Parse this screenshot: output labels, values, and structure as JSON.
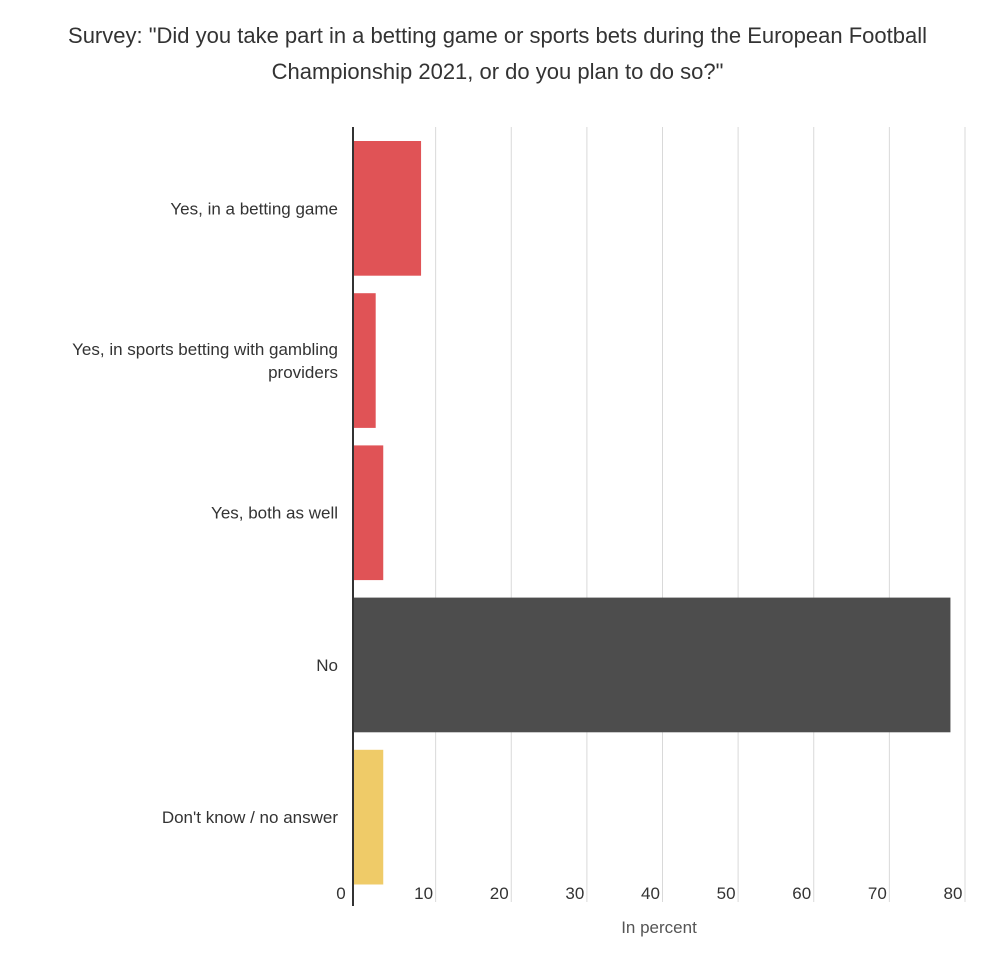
{
  "chart_data": {
    "type": "bar",
    "orientation": "horizontal",
    "title": "Survey: \"Did you take part in a betting game or sports bets during the European Football Championship 2021, or do you plan to do so?\"",
    "xlabel": "In percent",
    "ylabel": "",
    "xlim": [
      0,
      80
    ],
    "xticks": [
      0,
      10,
      20,
      30,
      40,
      50,
      60,
      70,
      80
    ],
    "grid": true,
    "categories": [
      "Yes, in a betting game",
      "Yes, in sports betting with gambling providers",
      "Yes, both as well",
      "No",
      "Don't know / no answer"
    ],
    "values": [
      9,
      3,
      4,
      79,
      4
    ],
    "colors": [
      "#e05356",
      "#e05356",
      "#e05356",
      "#4d4d4d",
      "#efcb68"
    ]
  }
}
